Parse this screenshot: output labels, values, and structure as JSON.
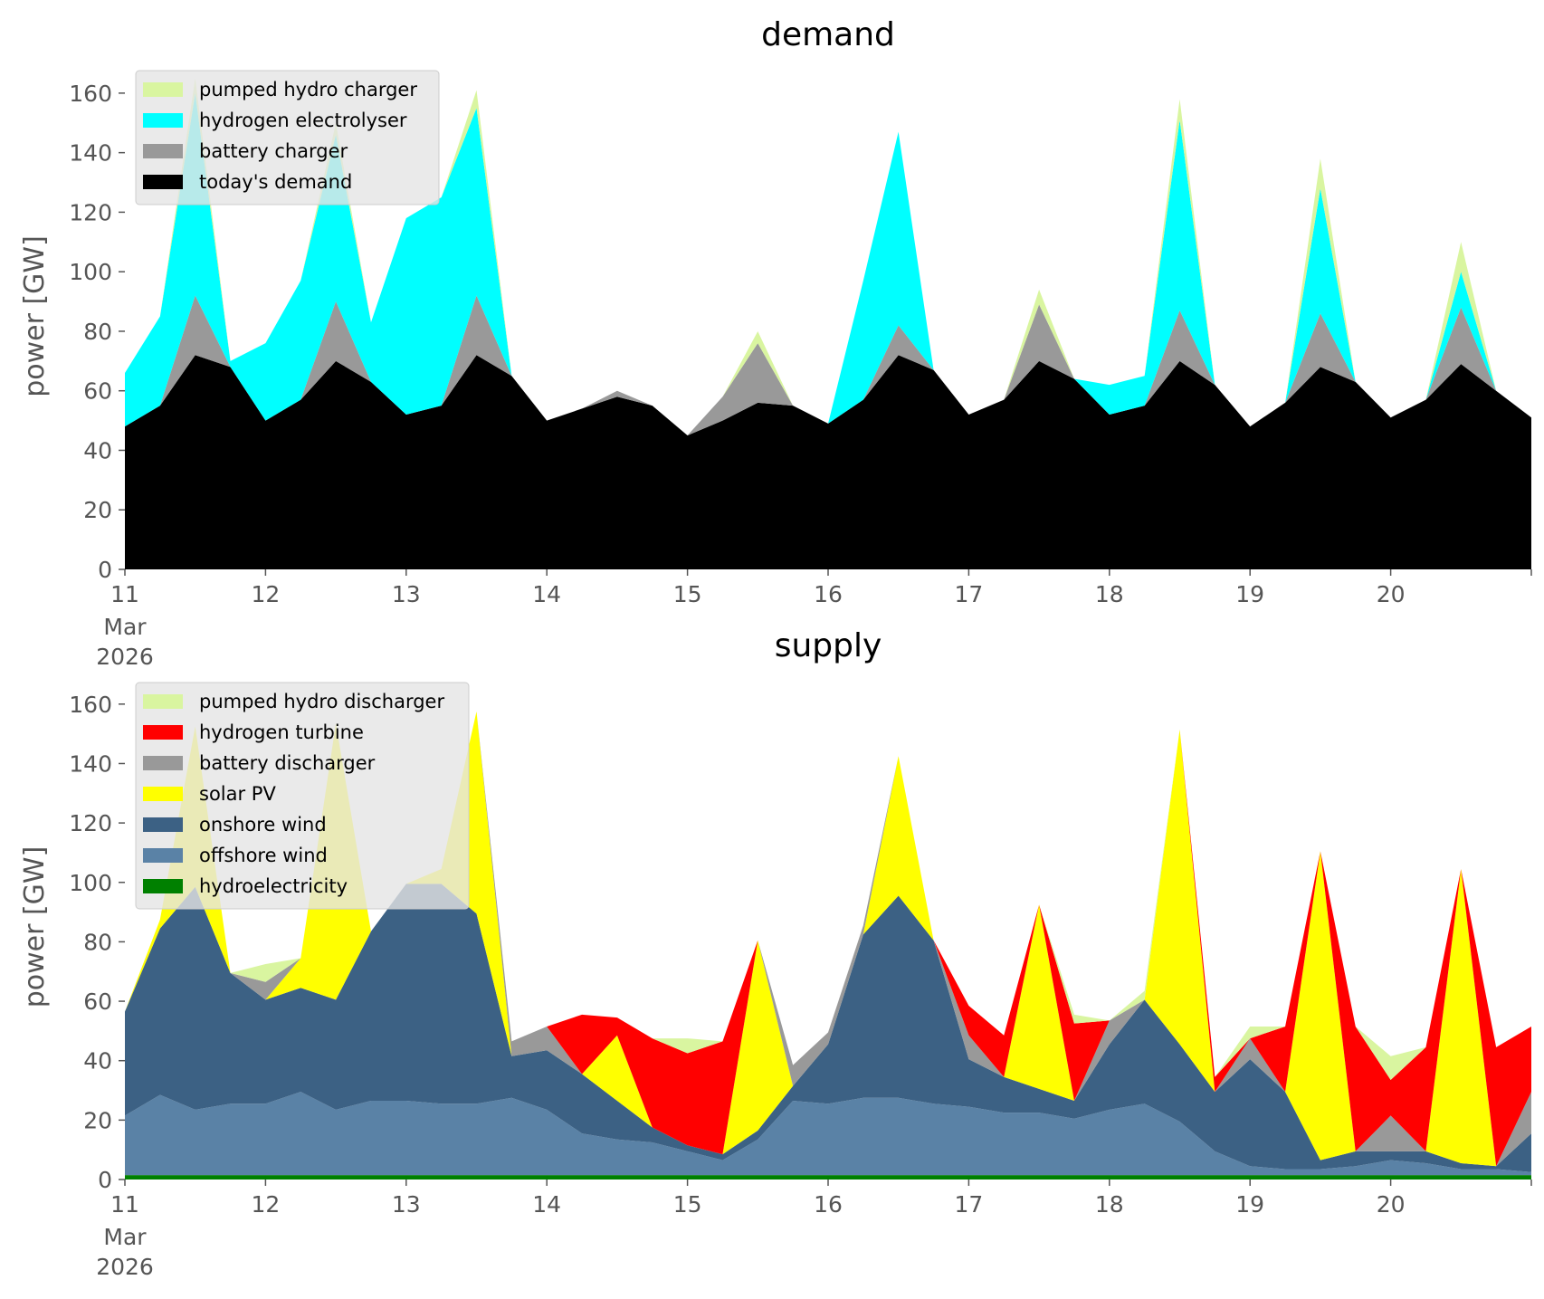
{
  "chart_data": [
    {
      "type": "area",
      "stacked": true,
      "title": "demand",
      "ylabel": "power [GW]",
      "ylim": [
        0,
        170
      ],
      "xlim": [
        "2026-03-11",
        "2026-03-21"
      ],
      "x_ticks": [
        "11",
        "12",
        "13",
        "14",
        "15",
        "16",
        "17",
        "18",
        "19",
        "20"
      ],
      "x_first_tick_extra": [
        "Mar",
        "2026"
      ],
      "y_ticks": [
        0,
        20,
        40,
        60,
        80,
        100,
        120,
        140,
        160
      ],
      "grid": false,
      "legend": "top-left",
      "x": [
        "2026-03-11 00:00",
        "2026-03-11 06:00",
        "2026-03-11 12:00",
        "2026-03-11 18:00",
        "2026-03-12 00:00",
        "2026-03-12 06:00",
        "2026-03-12 12:00",
        "2026-03-12 18:00",
        "2026-03-13 00:00",
        "2026-03-13 06:00",
        "2026-03-13 12:00",
        "2026-03-13 18:00",
        "2026-03-14 00:00",
        "2026-03-14 06:00",
        "2026-03-14 12:00",
        "2026-03-14 18:00",
        "2026-03-15 00:00",
        "2026-03-15 06:00",
        "2026-03-15 12:00",
        "2026-03-15 18:00",
        "2026-03-16 00:00",
        "2026-03-16 06:00",
        "2026-03-16 12:00",
        "2026-03-16 18:00",
        "2026-03-17 00:00",
        "2026-03-17 06:00",
        "2026-03-17 12:00",
        "2026-03-17 18:00",
        "2026-03-18 00:00",
        "2026-03-18 06:00",
        "2026-03-18 12:00",
        "2026-03-18 18:00",
        "2026-03-19 00:00",
        "2026-03-19 06:00",
        "2026-03-19 12:00",
        "2026-03-19 18:00",
        "2026-03-20 00:00",
        "2026-03-20 06:00",
        "2026-03-20 12:00",
        "2026-03-20 18:00",
        "2026-03-21 00:00"
      ],
      "series": [
        {
          "name": "today's demand",
          "color": "#000000",
          "values": [
            48,
            55,
            72,
            68,
            50,
            57,
            70,
            63,
            52,
            55,
            72,
            65,
            50,
            54,
            58,
            55,
            45,
            50,
            56,
            55,
            49,
            57,
            72,
            67,
            52,
            57,
            70,
            64,
            52,
            55,
            70,
            62,
            48,
            56,
            68,
            63,
            51,
            57,
            69,
            60,
            51
          ]
        },
        {
          "name": "battery charger",
          "color": "#999999",
          "values": [
            0,
            0,
            20,
            0,
            0,
            0,
            20,
            0,
            0,
            0,
            20,
            0,
            0,
            0,
            2,
            0,
            0,
            8,
            20,
            0,
            0,
            0,
            10,
            0,
            0,
            0,
            19,
            0,
            0,
            0,
            17,
            0,
            0,
            0,
            18,
            0,
            0,
            0,
            19,
            0,
            0
          ]
        },
        {
          "name": "hydrogen electrolyser",
          "color": "#00ffff",
          "values": [
            18,
            30,
            68,
            2,
            26,
            40,
            56,
            20,
            66,
            70,
            63,
            0,
            0,
            0,
            0,
            0,
            0,
            0,
            0,
            0,
            0,
            40,
            65,
            0,
            0,
            0,
            0,
            0,
            10,
            10,
            64,
            0,
            0,
            0,
            42,
            0,
            0,
            0,
            12,
            0,
            0
          ]
        },
        {
          "name": "pumped hydro charger",
          "color": "#d9f5a0",
          "values": [
            0,
            0,
            5,
            0,
            0,
            0,
            4,
            0,
            0,
            0,
            6,
            0,
            0,
            0,
            0,
            0,
            0,
            0,
            4,
            0,
            0,
            0,
            0,
            0,
            0,
            0,
            5,
            0,
            0,
            0,
            7,
            0,
            0,
            0,
            10,
            0,
            0,
            0,
            10,
            0,
            0
          ]
        }
      ]
    },
    {
      "type": "area",
      "stacked": true,
      "title": "supply",
      "ylabel": "power [GW]",
      "ylim": [
        0,
        170
      ],
      "xlim": [
        "2026-03-11",
        "2026-03-21"
      ],
      "x_ticks": [
        "11",
        "12",
        "13",
        "14",
        "15",
        "16",
        "17",
        "18",
        "19",
        "20"
      ],
      "x_first_tick_extra": [
        "Mar",
        "2026"
      ],
      "y_ticks": [
        0,
        20,
        40,
        60,
        80,
        100,
        120,
        140,
        160
      ],
      "grid": false,
      "legend": "top-left",
      "x": [
        "2026-03-11 00:00",
        "2026-03-11 06:00",
        "2026-03-11 12:00",
        "2026-03-11 18:00",
        "2026-03-12 00:00",
        "2026-03-12 06:00",
        "2026-03-12 12:00",
        "2026-03-12 18:00",
        "2026-03-13 00:00",
        "2026-03-13 06:00",
        "2026-03-13 12:00",
        "2026-03-13 18:00",
        "2026-03-14 00:00",
        "2026-03-14 06:00",
        "2026-03-14 12:00",
        "2026-03-14 18:00",
        "2026-03-15 00:00",
        "2026-03-15 06:00",
        "2026-03-15 12:00",
        "2026-03-15 18:00",
        "2026-03-16 00:00",
        "2026-03-16 06:00",
        "2026-03-16 12:00",
        "2026-03-16 18:00",
        "2026-03-17 00:00",
        "2026-03-17 06:00",
        "2026-03-17 12:00",
        "2026-03-17 18:00",
        "2026-03-18 00:00",
        "2026-03-18 06:00",
        "2026-03-18 12:00",
        "2026-03-18 18:00",
        "2026-03-19 00:00",
        "2026-03-19 06:00",
        "2026-03-19 12:00",
        "2026-03-19 18:00",
        "2026-03-20 00:00",
        "2026-03-20 06:00",
        "2026-03-20 12:00",
        "2026-03-20 18:00",
        "2026-03-21 00:00"
      ],
      "series": [
        {
          "name": "hydroelectricity",
          "color": "#008000",
          "values": [
            1.5,
            1.5,
            1.5,
            1.5,
            1.5,
            1.5,
            1.5,
            1.5,
            1.5,
            1.5,
            1.5,
            1.5,
            1.5,
            1.5,
            1.5,
            1.5,
            1.5,
            1.5,
            1.5,
            1.5,
            1.5,
            1.5,
            1.5,
            1.5,
            1.5,
            1.5,
            1.5,
            1.5,
            1.5,
            1.5,
            1.5,
            1.5,
            1.5,
            1.5,
            1.5,
            1.5,
            1.5,
            1.5,
            1.5,
            1.5,
            1.5
          ]
        },
        {
          "name": "offshore wind",
          "color": "#5a82a6",
          "values": [
            20,
            27,
            22,
            24,
            24,
            28,
            22,
            25,
            25,
            24,
            24,
            26,
            22,
            14,
            12,
            11,
            8,
            5,
            12,
            25,
            24,
            26,
            26,
            24,
            23,
            21,
            21,
            19,
            22,
            24,
            18,
            8,
            3,
            2,
            2,
            3,
            5,
            4,
            2,
            2,
            1
          ]
        },
        {
          "name": "onshore wind",
          "color": "#3c6184",
          "values": [
            35,
            56,
            75,
            44,
            35,
            35,
            37,
            57,
            73,
            74,
            64,
            14,
            20,
            20,
            13,
            5,
            2,
            2,
            3,
            5,
            20,
            55,
            68,
            55,
            16,
            12,
            8,
            6,
            22,
            35,
            26,
            20,
            36,
            26,
            3,
            5,
            3,
            4,
            2,
            1,
            13
          ]
        },
        {
          "name": "solar PV",
          "color": "#ffff00",
          "values": [
            0,
            3,
            54,
            0,
            0,
            10,
            93,
            0,
            0,
            5,
            68,
            0,
            0,
            0,
            22,
            0,
            0,
            0,
            64,
            0,
            0,
            0,
            47,
            0,
            0,
            0,
            62,
            0,
            0,
            0,
            106,
            0,
            0,
            0,
            104,
            0,
            0,
            0,
            99,
            0,
            0
          ]
        },
        {
          "name": "battery discharger",
          "color": "#999999",
          "values": [
            0,
            0,
            0,
            0,
            6,
            0,
            0,
            0,
            0,
            0,
            0,
            5,
            8,
            0,
            0,
            0,
            0,
            0,
            0,
            7,
            4,
            3,
            0,
            0,
            8,
            0,
            0,
            0,
            8,
            0,
            0,
            0,
            7,
            0,
            0,
            0,
            12,
            0,
            0,
            0,
            14
          ]
        },
        {
          "name": "hydrogen turbine",
          "color": "#ff0000",
          "values": [
            0,
            0,
            0,
            0,
            0,
            0,
            0,
            0,
            0,
            0,
            0,
            0,
            0,
            20,
            6,
            30,
            31,
            38,
            0,
            0,
            0,
            0,
            0,
            0,
            10,
            14,
            0,
            26,
            0,
            0,
            0,
            5,
            0,
            22,
            0,
            42,
            12,
            35,
            0,
            40,
            22
          ]
        },
        {
          "name": "pumped hydro discharger",
          "color": "#d9f5a0",
          "values": [
            0,
            0,
            0,
            0,
            6,
            0,
            0,
            0,
            0,
            0,
            0,
            0,
            0,
            0,
            0,
            0,
            5,
            0,
            0,
            0,
            0,
            0,
            0,
            0,
            0,
            0,
            0,
            3,
            0,
            3,
            0,
            0,
            4,
            0,
            0,
            0,
            8,
            0,
            0,
            0,
            0
          ]
        }
      ]
    }
  ]
}
